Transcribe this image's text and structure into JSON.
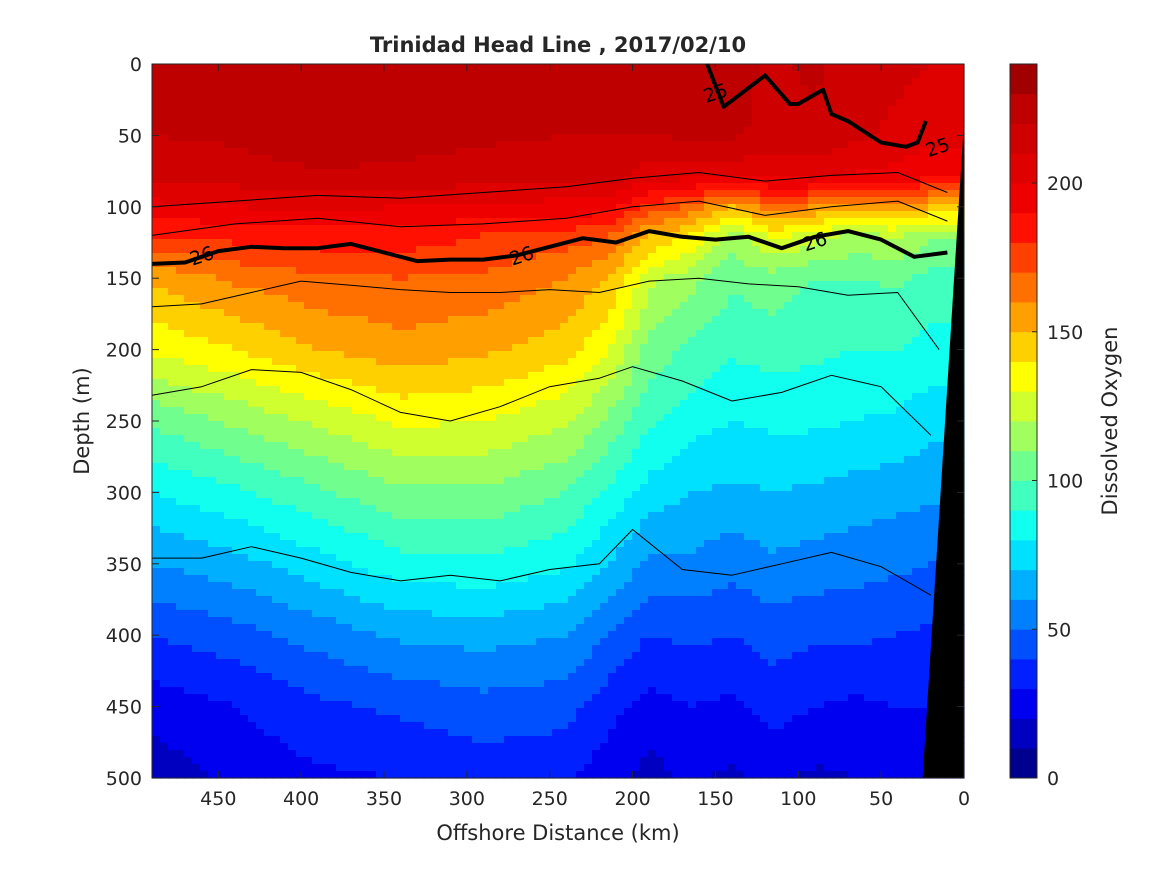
{
  "chart_data": {
    "type": "heatmap",
    "title": "Trinidad Head Line , 2017/02/10",
    "xlabel": "Offshore Distance (km)",
    "ylabel": "Depth (m)",
    "colorbar_label": "Dissolved Oxygen",
    "xlim": [
      490,
      0
    ],
    "ylim": [
      0,
      500
    ],
    "x_ticks": [
      450,
      400,
      350,
      300,
      250,
      200,
      150,
      100,
      50,
      0
    ],
    "y_ticks": [
      0,
      50,
      100,
      150,
      200,
      250,
      300,
      350,
      400,
      450,
      500
    ],
    "colorbar_ticks": [
      0,
      50,
      100,
      150,
      200
    ],
    "colorbar_range": [
      0,
      240
    ],
    "colorbar_levels": 24,
    "colormap": [
      "#00008f",
      "#0000c0",
      "#0000f0",
      "#0020ff",
      "#0050ff",
      "#0080ff",
      "#00b0ff",
      "#00e0ff",
      "#10ffef",
      "#40ffbf",
      "#70ff8f",
      "#a0ff5f",
      "#d0ff2f",
      "#ffff00",
      "#ffd000",
      "#ffa000",
      "#ff7000",
      "#ff4000",
      "#ff1000",
      "#ef0000",
      "#df0000",
      "#cf0000",
      "#bf0000",
      "#a00000"
    ],
    "oxygen_x": [
      490,
      440,
      390,
      340,
      290,
      240,
      215,
      190,
      165,
      140,
      115,
      90,
      65,
      40,
      20
    ],
    "oxygen_depth": [
      0,
      50,
      80,
      100,
      120,
      150,
      200,
      250,
      300,
      350,
      400,
      450,
      500
    ],
    "oxygen": [
      [
        224,
        224,
        226,
        226,
        224,
        222,
        222,
        222,
        224,
        224,
        218,
        222,
        214,
        212,
        210
      ],
      [
        220,
        222,
        228,
        226,
        222,
        220,
        220,
        220,
        222,
        222,
        216,
        218,
        212,
        208,
        204
      ],
      [
        212,
        214,
        218,
        216,
        214,
        212,
        214,
        204,
        200,
        202,
        200,
        202,
        198,
        196,
        190
      ],
      [
        196,
        200,
        202,
        200,
        198,
        196,
        196,
        176,
        168,
        150,
        168,
        160,
        156,
        158,
        150
      ],
      [
        180,
        184,
        186,
        186,
        180,
        176,
        172,
        150,
        140,
        116,
        134,
        124,
        118,
        122,
        112
      ],
      [
        152,
        162,
        168,
        170,
        168,
        160,
        150,
        124,
        114,
        102,
        106,
        100,
        100,
        102,
        96
      ],
      [
        132,
        140,
        150,
        156,
        152,
        144,
        132,
        106,
        98,
        92,
        94,
        92,
        90,
        90,
        86
      ],
      [
        102,
        112,
        122,
        132,
        130,
        122,
        108,
        92,
        84,
        80,
        82,
        82,
        80,
        78,
        74
      ],
      [
        80,
        88,
        98,
        108,
        108,
        100,
        88,
        76,
        70,
        68,
        70,
        68,
        66,
        64,
        62
      ],
      [
        60,
        66,
        76,
        86,
        88,
        82,
        70,
        58,
        58,
        54,
        58,
        56,
        54,
        52,
        50
      ],
      [
        40,
        46,
        54,
        62,
        64,
        60,
        50,
        40,
        42,
        40,
        44,
        42,
        42,
        40,
        38
      ],
      [
        24,
        30,
        38,
        42,
        46,
        44,
        34,
        26,
        30,
        28,
        34,
        30,
        28,
        30,
        30
      ],
      [
        14,
        22,
        28,
        30,
        34,
        32,
        24,
        16,
        22,
        18,
        22,
        18,
        20,
        22,
        22
      ]
    ],
    "isopycnals": [
      {
        "level": 25,
        "labeled": true,
        "x": [
          155,
          145,
          120,
          105,
          100,
          85,
          80,
          70,
          50,
          35,
          28,
          23
        ],
        "depth": [
          0,
          30,
          8,
          28,
          28,
          18,
          35,
          40,
          55,
          58,
          55,
          40
        ]
      },
      {
        "level": 26,
        "labeled": true,
        "x": [
          490,
          470,
          450,
          430,
          410,
          390,
          370,
          350,
          330,
          310,
          290,
          270,
          250,
          230,
          210,
          190,
          170,
          150,
          130,
          110,
          90,
          70,
          50,
          30,
          10
        ],
        "depth": [
          140,
          139,
          131,
          128,
          129,
          129,
          126,
          132,
          138,
          137,
          137,
          134,
          128,
          122,
          125,
          117,
          121,
          123,
          121,
          129,
          121,
          117,
          123,
          135,
          132
        ]
      },
      {
        "level": null,
        "labeled": false,
        "x": [
          490,
          440,
          390,
          340,
          290,
          240,
          200,
          160,
          120,
          80,
          40,
          10
        ],
        "depth": [
          100,
          96,
          92,
          94,
          90,
          86,
          80,
          76,
          82,
          78,
          76,
          90
        ]
      },
      {
        "level": null,
        "labeled": false,
        "x": [
          490,
          440,
          390,
          340,
          290,
          240,
          200,
          160,
          120,
          80,
          40,
          10
        ],
        "depth": [
          120,
          112,
          108,
          114,
          112,
          108,
          100,
          96,
          106,
          100,
          96,
          110
        ]
      },
      {
        "level": null,
        "labeled": false,
        "x": [
          490,
          460,
          430,
          400,
          370,
          340,
          310,
          280,
          250,
          220,
          190,
          160,
          130,
          100,
          70,
          40,
          15
        ],
        "depth": [
          170,
          168,
          160,
          152,
          155,
          158,
          160,
          160,
          158,
          160,
          152,
          150,
          154,
          156,
          162,
          160,
          200
        ]
      },
      {
        "level": null,
        "labeled": false,
        "x": [
          490,
          460,
          430,
          400,
          370,
          340,
          310,
          280,
          250,
          220,
          200,
          170,
          140,
          110,
          80,
          50,
          20
        ],
        "depth": [
          232,
          226,
          214,
          216,
          228,
          244,
          250,
          240,
          226,
          220,
          212,
          222,
          236,
          230,
          218,
          226,
          260
        ]
      },
      {
        "level": null,
        "labeled": false,
        "x": [
          490,
          460,
          430,
          400,
          370,
          340,
          310,
          280,
          250,
          220,
          200,
          170,
          140,
          110,
          80,
          50,
          20
        ],
        "depth": [
          346,
          346,
          338,
          346,
          356,
          362,
          358,
          362,
          354,
          350,
          326,
          354,
          358,
          350,
          342,
          352,
          372
        ]
      }
    ],
    "iso_labels": [
      {
        "text": "25",
        "x": 150,
        "depth": 20
      },
      {
        "text": "25",
        "x": 16,
        "depth": 58
      },
      {
        "text": "26",
        "x": 460,
        "depth": 134
      },
      {
        "text": "26",
        "x": 267,
        "depth": 134
      },
      {
        "text": "26",
        "x": 90,
        "depth": 124
      }
    ],
    "topography": {
      "x": [
        25,
        0,
        0,
        25
      ],
      "depth": [
        500,
        40,
        500,
        500
      ],
      "color": "#000000"
    }
  }
}
